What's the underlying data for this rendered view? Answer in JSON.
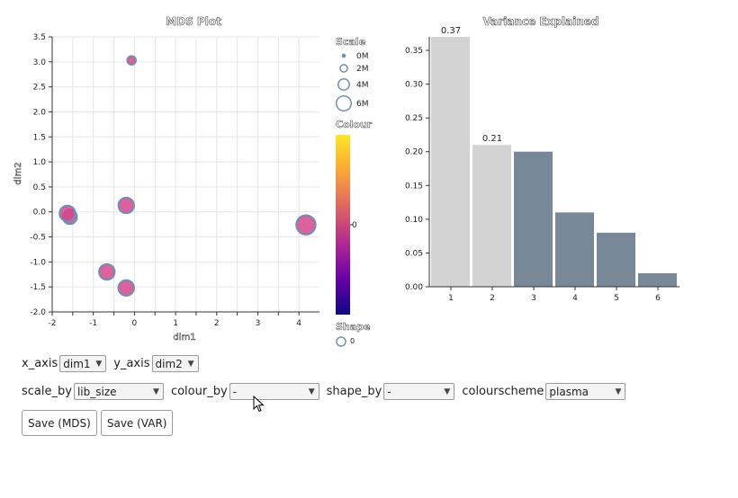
{
  "colors": {
    "point_fill": "#d6478a",
    "point_stroke": "#6b8fb8",
    "bar_highlight": "#d3d3d3",
    "bar_normal": "#778899",
    "gradient": [
      "#fde724",
      "#fca636",
      "#e16462",
      "#b12a90",
      "#6a00a8",
      "#0d0887"
    ]
  },
  "chart_data": [
    {
      "type": "scatter",
      "title": "MDS Plot",
      "xlabel": "dim1",
      "ylabel": "dim2",
      "xlim": [
        -2,
        4.5
      ],
      "ylim": [
        -2,
        3.5
      ],
      "xticks": [
        -2,
        -1.5,
        -1,
        -0.5,
        0,
        0.5,
        1,
        1.5,
        2,
        2.5,
        3,
        3.5,
        4
      ],
      "xtick_labels": [
        "-2",
        "",
        "-1",
        "",
        "0",
        "",
        "1",
        "",
        "2",
        "",
        "3",
        "",
        "4"
      ],
      "yticks": [
        -2,
        -1.5,
        -1,
        -0.5,
        0,
        0.5,
        1,
        1.5,
        2,
        2.5,
        3,
        3.5
      ],
      "ytick_labels": [
        "-2.0",
        "-1.5",
        "-1.0",
        "-0.5",
        "0.0",
        "0.5",
        "1.0",
        "1.5",
        "2.0",
        "2.5",
        "3.0",
        "3.5"
      ],
      "grid": true,
      "points": [
        {
          "x": -0.07,
          "y": 3.03,
          "size": 1.8
        },
        {
          "x": -1.57,
          "y": -0.1,
          "size": 3.8
        },
        {
          "x": -1.63,
          "y": -0.03,
          "size": 4.3
        },
        {
          "x": -0.2,
          "y": 0.13,
          "size": 4.3
        },
        {
          "x": 4.17,
          "y": -0.26,
          "size": 5.6
        },
        {
          "x": -0.67,
          "y": -1.2,
          "size": 4.3
        },
        {
          "x": -0.2,
          "y": -1.52,
          "size": 4.3
        }
      ],
      "legend": {
        "scale_title": "Scale",
        "scale_items": [
          {
            "label": "0M",
            "size": 0
          },
          {
            "label": "2M",
            "size": 2
          },
          {
            "label": "4M",
            "size": 4
          },
          {
            "label": "6M",
            "size": 6
          }
        ],
        "colour_title": "Colour",
        "colour_tick": "0",
        "shape_title": "Shape",
        "shape_item": "0"
      }
    },
    {
      "type": "bar",
      "title": "Variance Explained",
      "categories": [
        "1",
        "2",
        "3",
        "4",
        "5",
        "6"
      ],
      "values": [
        0.37,
        0.21,
        0.2,
        0.11,
        0.08,
        0.02
      ],
      "highlighted": [
        true,
        true,
        false,
        false,
        false,
        false
      ],
      "data_labels": [
        "0.37",
        "0.21",
        "",
        "",
        "",
        ""
      ],
      "ylim": [
        0,
        0.37
      ],
      "yticks": [
        0,
        0.05,
        0.1,
        0.15,
        0.2,
        0.25,
        0.3,
        0.35
      ],
      "ytick_labels": [
        "0.00",
        "0.05",
        "0.10",
        "0.15",
        "0.20",
        "0.25",
        "0.30",
        "0.35"
      ],
      "grid": false
    }
  ],
  "controls": {
    "x_axis_label": "x_axis",
    "x_axis_value": "dim1",
    "y_axis_label": "y_axis",
    "y_axis_value": "dim2",
    "scale_by_label": "scale_by",
    "scale_by_value": "lib_size",
    "colour_by_label": "colour_by",
    "colour_by_value": "-",
    "shape_by_label": "shape_by",
    "shape_by_value": "-",
    "colourscheme_label": "colourscheme",
    "colourscheme_value": "plasma",
    "save_mds_label": "Save (MDS)",
    "save_var_label": "Save (VAR)"
  }
}
